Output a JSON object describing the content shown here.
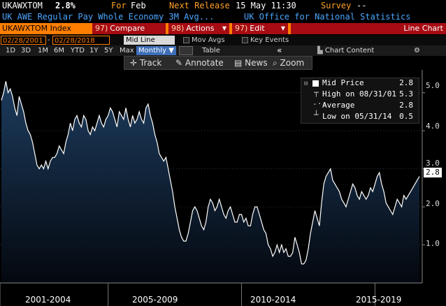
{
  "header": {
    "ticker": "UKAWXTOM",
    "value": "2.8%",
    "for_label": "For",
    "for_value": "Feb",
    "next_release_label": "Next Release",
    "next_release_value": "15 May 11:30",
    "survey_label": "Survey",
    "survey_value": "--",
    "description": "UK AWE Regular Pay Whole Economy 3M Avg...",
    "source": "UK Office for National Statistics"
  },
  "toolbar": {
    "index_label": "UKAWXTOM Index",
    "compare": {
      "num": "97)",
      "label": "Compare"
    },
    "actions": {
      "num": "98)",
      "label": "Actions"
    },
    "edit": {
      "num": "97)",
      "label": "Edit"
    },
    "chart_type": "Line Chart"
  },
  "daterow": {
    "start": "02/28/2001",
    "end": "02/28/2018",
    "mode": "Mid Line",
    "mov_avgs": "Mov Avgs",
    "key_events": "Key Events"
  },
  "periods": {
    "items": [
      "1D",
      "3D",
      "1M",
      "6M",
      "YTD",
      "1Y",
      "5Y",
      "Max"
    ],
    "selected": "Monthly",
    "table": "Table",
    "chart_content": "Chart Content"
  },
  "tools": {
    "track": "Track",
    "annotate": "Annotate",
    "news": "News",
    "zoom": "Zoom"
  },
  "legend": {
    "mid_label": "Mid Price",
    "mid_value": "2.8",
    "high_label": "High on 08/31/01",
    "high_value": "5.3",
    "avg_label": "Average",
    "avg_value": "2.8",
    "low_label": "Low on 05/31/14",
    "low_value": "0.5"
  },
  "last_value": "2.8",
  "colors": {
    "line": "#ffffff",
    "area_top": "#1d3c5e",
    "area_bottom": "#04080f",
    "orange": "#ff7e00",
    "red": "#a70c13",
    "blue": "#4aa6ff"
  },
  "chart_data": {
    "type": "area",
    "ylim": [
      0,
      5.6
    ],
    "yticks": [
      "5.0",
      "4.0",
      "3.0",
      "2.0",
      "1.0"
    ],
    "yticks_values": [
      5,
      4,
      3,
      2,
      1
    ],
    "xlabels": [
      "2001-2004",
      "2005-2009",
      "2010-2014",
      "2015-2019"
    ],
    "x_start": "2001-02",
    "x_end": "2018-02",
    "series": [
      {
        "values": [
          4.8,
          5.0,
          5.3,
          5.0,
          5.1,
          4.9,
          4.6,
          4.4,
          4.9,
          4.7,
          4.5,
          4.2,
          4.0,
          3.9,
          3.7,
          3.4,
          3.1,
          3.0,
          3.1,
          3.0,
          3.2,
          3.0,
          3.2,
          3.3,
          3.3,
          3.4,
          3.6,
          3.5,
          3.4,
          3.7,
          3.9,
          4.2,
          4.0,
          4.3,
          4.4,
          4.2,
          4.1,
          4.4,
          4.3,
          4.0,
          3.9,
          4.1,
          4.0,
          4.2,
          4.4,
          4.2,
          4.1,
          4.3,
          4.4,
          4.6,
          4.5,
          4.3,
          4.1,
          4.5,
          4.4,
          4.3,
          4.6,
          4.3,
          4.1,
          4.4,
          4.2,
          4.3,
          4.5,
          4.3,
          4.2,
          4.6,
          4.7,
          4.4,
          4.2,
          3.9,
          3.7,
          3.4,
          3.3,
          3.2,
          3.3,
          3.0,
          2.7,
          2.4,
          2.0,
          1.7,
          1.4,
          1.2,
          1.1,
          1.1,
          1.3,
          1.6,
          1.9,
          2.0,
          1.9,
          1.7,
          1.5,
          1.4,
          1.6,
          2.0,
          2.2,
          2.1,
          1.9,
          2.0,
          2.2,
          2.0,
          1.8,
          1.7,
          1.9,
          2.0,
          1.8,
          1.6,
          1.6,
          1.8,
          1.8,
          1.6,
          1.7,
          1.5,
          1.5,
          1.8,
          2.0,
          2.0,
          1.8,
          1.6,
          1.4,
          1.3,
          1.0,
          0.9,
          0.7,
          0.8,
          1.0,
          0.8,
          1.0,
          0.8,
          0.9,
          0.7,
          0.7,
          0.8,
          1.2,
          1.0,
          0.8,
          0.5,
          0.5,
          0.6,
          0.9,
          1.3,
          1.6,
          1.9,
          1.7,
          1.5,
          2.1,
          2.6,
          2.8,
          2.9,
          3.0,
          2.7,
          2.6,
          2.5,
          2.4,
          2.2,
          2.1,
          2.0,
          2.2,
          2.4,
          2.6,
          2.5,
          2.3,
          2.2,
          2.4,
          2.3,
          2.2,
          2.3,
          2.5,
          2.4,
          2.6,
          2.8,
          2.9,
          2.6,
          2.4,
          2.1,
          2.0,
          1.9,
          1.8,
          2.0,
          2.2,
          2.1,
          2.0,
          2.3,
          2.2,
          2.3,
          2.4,
          2.5,
          2.6,
          2.7,
          2.8
        ]
      }
    ]
  }
}
